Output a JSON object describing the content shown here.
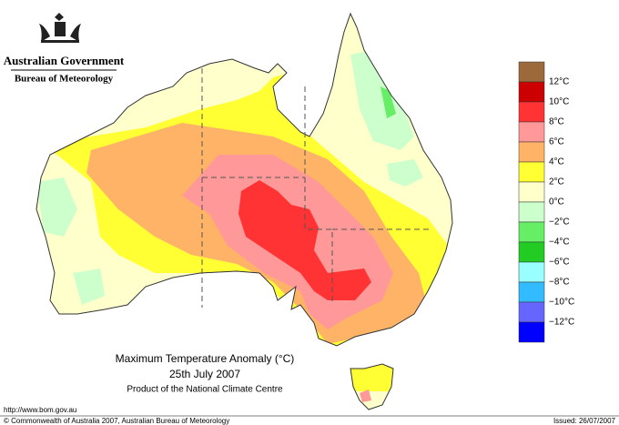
{
  "header": {
    "government": "Australian Government",
    "agency": "Bureau of Meteorology"
  },
  "map": {
    "title": "Maximum Temperature Anomaly (°C)",
    "date": "25th July 2007",
    "product": "Product of the National Climate Centre"
  },
  "legend": {
    "colors": [
      "#9c6a3a",
      "#cc0000",
      "#ff3333",
      "#ff9999",
      "#ffb366",
      "#ffff33",
      "#ffffcc",
      "#ccffcc",
      "#66ee66",
      "#22cc22",
      "#99ffff",
      "#33bbff",
      "#6666ff",
      "#0000ff"
    ],
    "labels": [
      "12°C",
      "10°C",
      "8°C",
      "6°C",
      "4°C",
      "2°C",
      "0°C",
      "−2°C",
      "−4°C",
      "−6°C",
      "−8°C",
      "−10°C",
      "−12°C"
    ]
  },
  "footer": {
    "url": "http://www.bom.gov.au",
    "copyright": "© Commonwealth of Australia 2007, Australian Bureau of Meteorology",
    "issued": "Issued: 26/07/2007"
  }
}
